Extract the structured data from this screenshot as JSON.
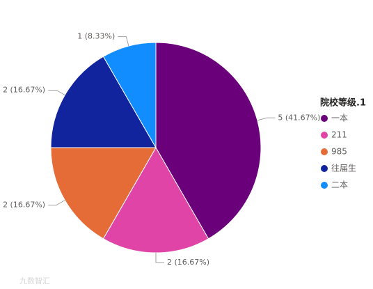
{
  "chart_data": {
    "type": "pie",
    "legend_title": "院校等级.1",
    "categories": [
      "一本",
      "211",
      "985",
      "往届生",
      "二本"
    ],
    "values": [
      5,
      2,
      2,
      2,
      1
    ],
    "value_labels": [
      "5 (41.67%)",
      "2 (16.67%)",
      "2 (16.67%)",
      "2 (16.67%)",
      "1 (8.33%)"
    ],
    "colors": [
      "#6B007B",
      "#E044A7",
      "#E66C37",
      "#12239E",
      "#118DFF"
    ],
    "legend": "right"
  },
  "watermark": "九数智汇"
}
